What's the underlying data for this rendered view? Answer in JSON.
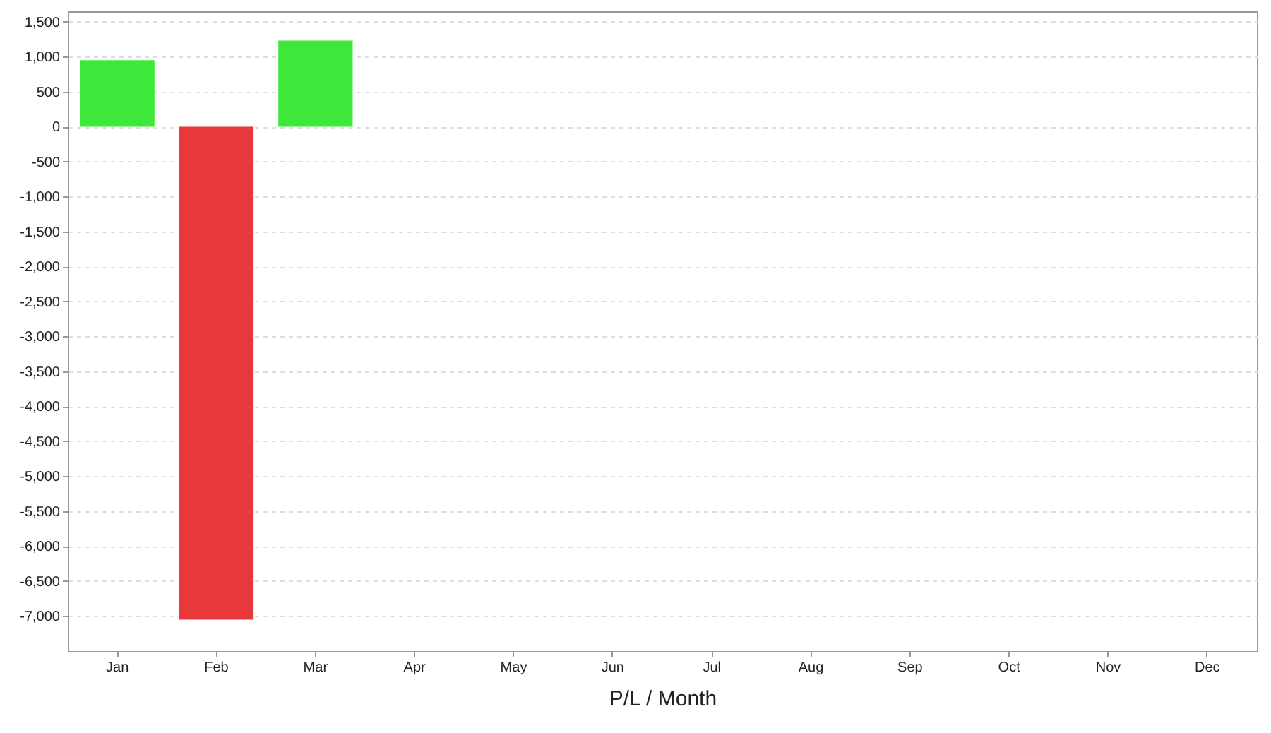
{
  "chart_data": {
    "type": "bar",
    "xlabel": "P/L / Month",
    "categories": [
      "Jan",
      "Feb",
      "Mar",
      "Apr",
      "May",
      "Jun",
      "Jul",
      "Aug",
      "Sep",
      "Oct",
      "Nov",
      "Dec"
    ],
    "values": [
      950,
      -7050,
      1230,
      null,
      null,
      null,
      null,
      null,
      null,
      null,
      null,
      null
    ],
    "colors": [
      "#3de83a",
      "#e8383b",
      "#3de83a",
      "#3de83a",
      "#3de83a",
      "#3de83a",
      "#3de83a",
      "#3de83a",
      "#3de83a",
      "#3de83a",
      "#3de83a",
      "#3de83a"
    ],
    "ylim": [
      -7500,
      1650
    ],
    "yticks": [
      {
        "value": -7000,
        "label": "-7,000"
      },
      {
        "value": -6500,
        "label": "-6,500"
      },
      {
        "value": -6000,
        "label": "-6,000"
      },
      {
        "value": -5500,
        "label": "-5,500"
      },
      {
        "value": -5000,
        "label": "-5,000"
      },
      {
        "value": -4500,
        "label": "-4,500"
      },
      {
        "value": -4000,
        "label": "-4,000"
      },
      {
        "value": -3500,
        "label": "-3,500"
      },
      {
        "value": -3000,
        "label": "-3,000"
      },
      {
        "value": -2500,
        "label": "-2,500"
      },
      {
        "value": -2000,
        "label": "-2,000"
      },
      {
        "value": -1500,
        "label": "-1,500"
      },
      {
        "value": -1000,
        "label": "-1,000"
      },
      {
        "value": -500,
        "label": "-500"
      },
      0,
      500,
      {
        "value": 1000,
        "label": "1,000"
      },
      {
        "value": 1500,
        "label": "1,500"
      }
    ],
    "grid": "y"
  }
}
